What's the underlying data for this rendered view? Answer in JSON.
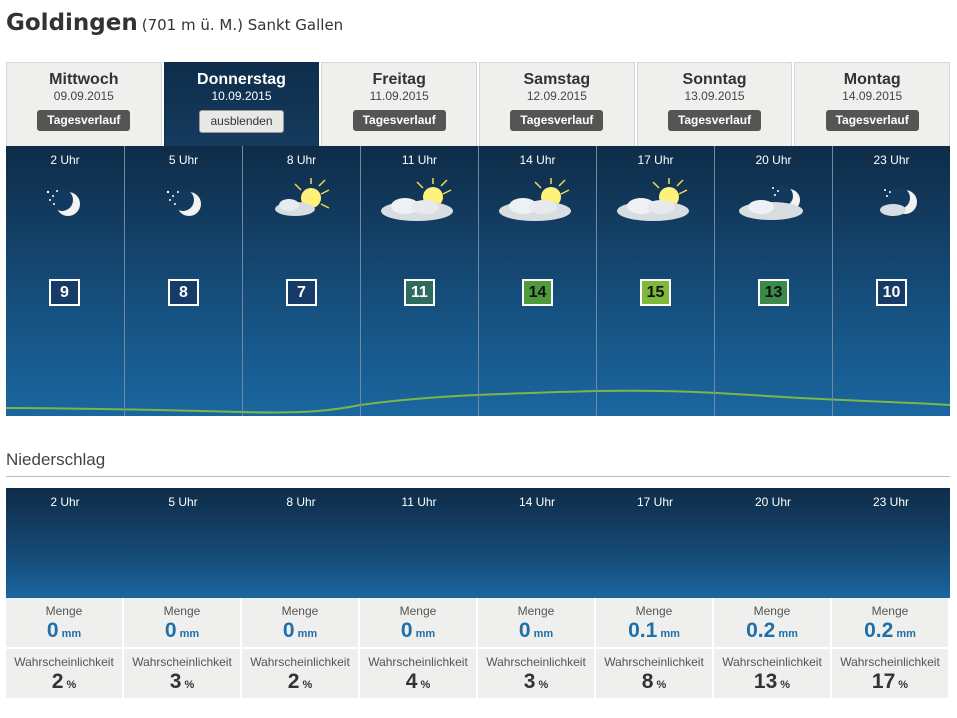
{
  "location": {
    "name": "Goldingen",
    "detail": "(701 m ü. M.) Sankt Gallen"
  },
  "tabs": [
    {
      "day": "Mittwoch",
      "date": "09.09.2015",
      "button": "Tagesverlauf",
      "active": false
    },
    {
      "day": "Donnerstag",
      "date": "10.09.2015",
      "button": "ausblenden",
      "active": true
    },
    {
      "day": "Freitag",
      "date": "11.09.2015",
      "button": "Tagesverlauf",
      "active": false
    },
    {
      "day": "Samstag",
      "date": "12.09.2015",
      "button": "Tagesverlauf",
      "active": false
    },
    {
      "day": "Sonntag",
      "date": "13.09.2015",
      "button": "Tagesverlauf",
      "active": false
    },
    {
      "day": "Montag",
      "date": "14.09.2015",
      "button": "Tagesverlauf",
      "active": false
    }
  ],
  "hourly": [
    {
      "time": "2 Uhr",
      "icon": "moon-stars-icon",
      "temp": "9",
      "temp_color": "#163b66"
    },
    {
      "time": "5 Uhr",
      "icon": "moon-stars-icon",
      "temp": "8",
      "temp_color": "#163b66"
    },
    {
      "time": "8 Uhr",
      "icon": "sun-cloud-icon",
      "temp": "7",
      "temp_color": "#163b66"
    },
    {
      "time": "11 Uhr",
      "icon": "sun-cloud-icon",
      "temp": "11",
      "temp_color": "#2e6b5f"
    },
    {
      "time": "14 Uhr",
      "icon": "sun-cloud-icon",
      "temp": "14",
      "temp_color": "#4f9b3c"
    },
    {
      "time": "17 Uhr",
      "icon": "sun-cloud-icon",
      "temp": "15",
      "temp_color": "#7fb83a"
    },
    {
      "time": "20 Uhr",
      "icon": "moon-cloud-icon",
      "temp": "13",
      "temp_color": "#3b8a4a"
    },
    {
      "time": "23 Uhr",
      "icon": "moon-cloud-icon",
      "temp": "10",
      "temp_color": "#163b66"
    }
  ],
  "precipitation": {
    "title": "Niederschlag",
    "amount_label": "Menge",
    "amount_unit": "mm",
    "probability_label": "Wahrscheinlichkeit",
    "probability_unit": "%",
    "slots": [
      {
        "time": "2 Uhr",
        "amount": "0",
        "probability": "2"
      },
      {
        "time": "5 Uhr",
        "amount": "0",
        "probability": "3"
      },
      {
        "time": "8 Uhr",
        "amount": "0",
        "probability": "2"
      },
      {
        "time": "11 Uhr",
        "amount": "0",
        "probability": "4"
      },
      {
        "time": "14 Uhr",
        "amount": "0",
        "probability": "3"
      },
      {
        "time": "17 Uhr",
        "amount": "0.1",
        "probability": "8"
      },
      {
        "time": "20 Uhr",
        "amount": "0.2",
        "probability": "13"
      },
      {
        "time": "23 Uhr",
        "amount": "0.2",
        "probability": "17"
      }
    ]
  },
  "colors": {
    "panel_dark": "#0e2c48",
    "panel_light": "#1a67a0",
    "trend_line": "#7ab648",
    "value_blue": "#1f6fa8"
  }
}
